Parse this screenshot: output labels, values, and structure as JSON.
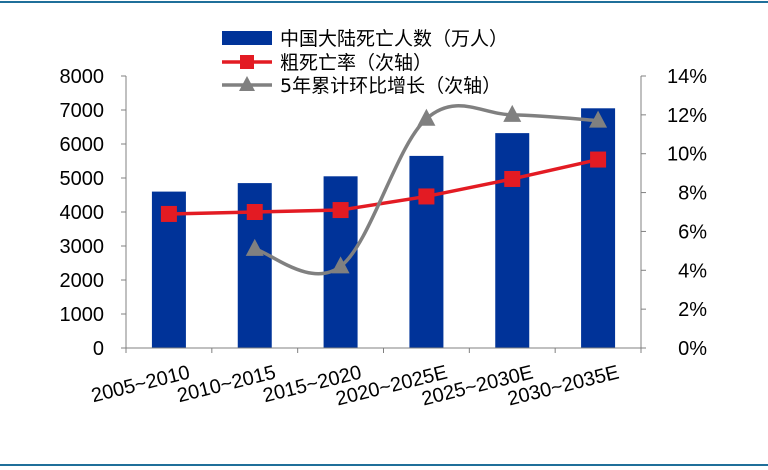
{
  "chart_data": {
    "type": "bar",
    "categories": [
      "2005~2010",
      "2010~2015",
      "2015~2020",
      "2020~2025E",
      "2025~2030E",
      "2030~2035E"
    ],
    "series": [
      {
        "name": "中国大陆死亡人数（万人）",
        "type": "bar",
        "axis": "primary",
        "color": "#003399",
        "values": [
          4600,
          4850,
          5050,
          5650,
          6320,
          7050
        ]
      },
      {
        "name": "粗死亡率（次轴）",
        "type": "line",
        "axis": "secondary",
        "color": "#e31b23",
        "marker": "square",
        "values": [
          6.9,
          7.0,
          7.1,
          7.8,
          8.7,
          9.7
        ]
      },
      {
        "name": "5年累计环比增长（次轴）",
        "type": "line",
        "axis": "secondary",
        "color": "#808080",
        "marker": "triangle",
        "smooth": true,
        "values": [
          null,
          5.1,
          4.2,
          11.8,
          12.0,
          11.7
        ]
      }
    ],
    "ylim": [
      0,
      8000
    ],
    "y_ticks": [
      "0",
      "1000",
      "2000",
      "3000",
      "4000",
      "5000",
      "6000",
      "7000",
      "8000"
    ],
    "y2lim": [
      0,
      14
    ],
    "y2_ticks": [
      "0%",
      "2%",
      "4%",
      "6%",
      "8%",
      "10%",
      "12%",
      "14%"
    ],
    "grid": false,
    "legend_position": "top"
  }
}
